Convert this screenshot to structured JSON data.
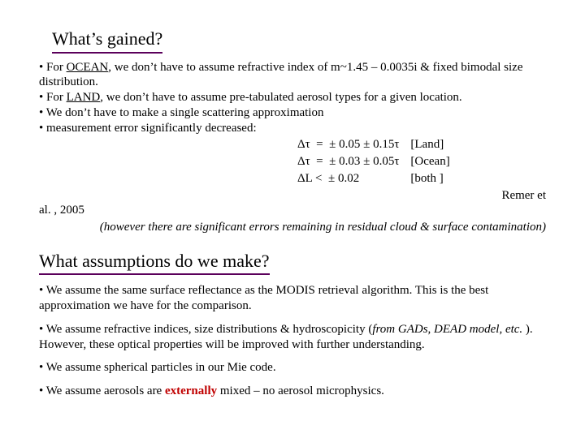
{
  "colors": {
    "underline": "#5b005b",
    "text": "#000000",
    "emph": "#c00000",
    "background": "#ffffff"
  },
  "typography": {
    "heading_fontsize": 22,
    "body_fontsize": 15,
    "font_family": "Garamond serif"
  },
  "h1": "What’s gained?",
  "gain": {
    "b1a": "•  For ",
    "b1_ocean": "OCEAN",
    "b1b": ", we don’t have to assume refractive index of m~1.45 – 0.0035i & fixed bimodal size distribution.",
    "b2a": "• For ",
    "b2_land": "LAND",
    "b2b": ", we don’t have to assume pre-tabulated aerosol types for a given location.",
    "b3": "• We don’t have to make a single scattering approximation",
    "b4": "• measurement error significantly decreased:"
  },
  "err": {
    "r1c1": "Δτ  =  ± 0.05 ± 0.15τ",
    "r1c2": "[Land]",
    "r2c1": "Δτ  =  ± 0.03 ± 0.05τ",
    "r2c2": "[Ocean]",
    "r3c1": "ΔL <  ± 0.02",
    "r3c2": "[both ]"
  },
  "cite_right": "Remer et",
  "cite_left": "al. , 2005",
  "note": "(however there are significant errors remaining in residual cloud & surface contamination)",
  "h2": "What assumptions do we make?",
  "assump": {
    "a1": "• We assume the same surface reflectance as the MODIS retrieval algorithm.  This is the best approximation we have for the comparison.",
    "a2a": "• We assume refractive indices, size distributions & hydroscopicity (",
    "a2i": "from GADs, DEAD model, etc.",
    "a2b": " ).  However, these optical properties will be improved with further understanding.",
    "a3": "• We assume spherical particles in our Mie code.",
    "a4a": "• We assume aerosols are ",
    "a4e": "externally",
    "a4b": " mixed – no aerosol microphysics."
  }
}
